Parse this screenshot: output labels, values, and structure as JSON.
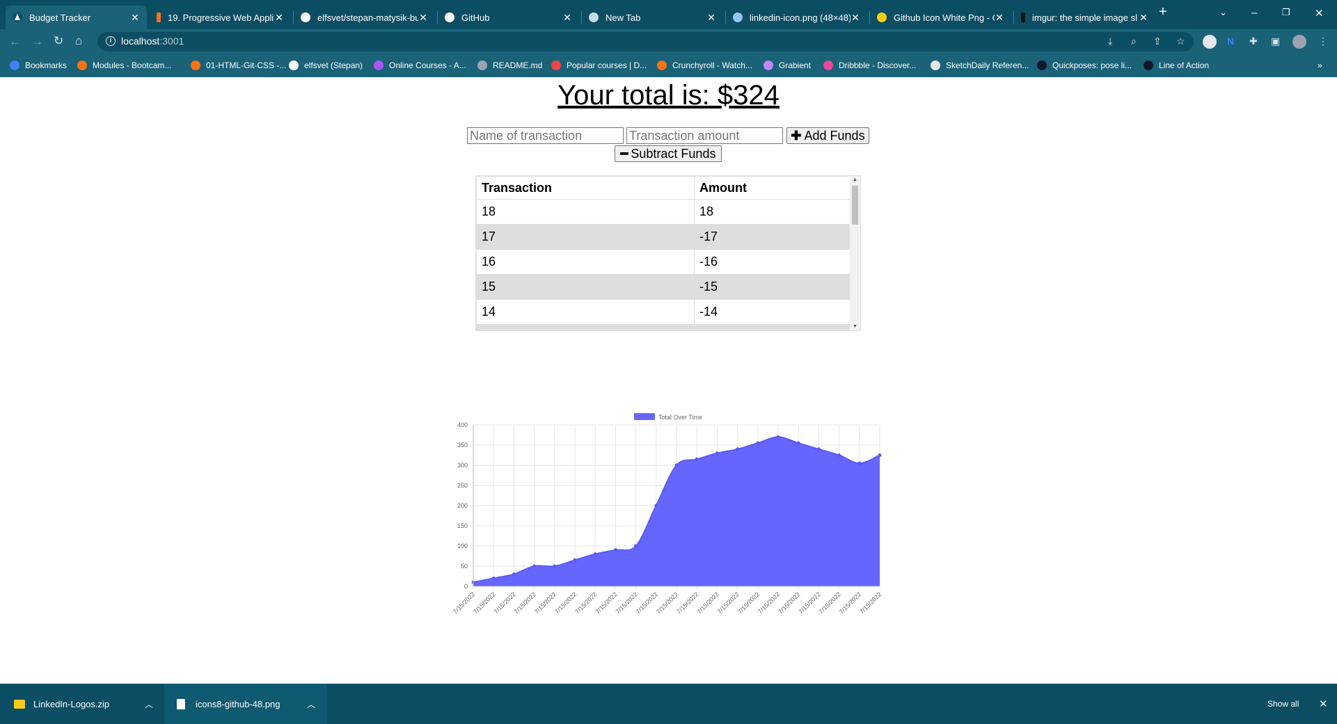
{
  "browser": {
    "tabs": [
      {
        "title": "Budget Tracker",
        "active": true,
        "icon": "budget-icon"
      },
      {
        "title": "19. Progressive Web Appli",
        "icon": "bootcamp-icon"
      },
      {
        "title": "elfsvet/stepan-matysik-bu",
        "icon": "github-icon"
      },
      {
        "title": "GitHub",
        "icon": "github-icon"
      },
      {
        "title": "New Tab",
        "icon": "chrome-icon"
      },
      {
        "title": "linkedin-icon.png (48×48)",
        "icon": "image-icon"
      },
      {
        "title": "Github Icon White Png - G",
        "icon": "pngegg-icon"
      },
      {
        "title": "imgur: the simple image sl",
        "icon": "imgur-icon"
      }
    ],
    "url_host": "localhost",
    "url_port": ":3001",
    "bookmarks": [
      {
        "label": "Bookmarks",
        "icon": "star-icon",
        "color": "#3b82f6"
      },
      {
        "label": "Modules - Bootcam...",
        "icon": "bootcamp-icon",
        "color": "#f97316"
      },
      {
        "label": "01-HTML-Git-CSS -...",
        "icon": "gitlab-icon",
        "color": "#f97316"
      },
      {
        "label": "elfsvet (Stepan)",
        "icon": "github-icon",
        "color": "#ffffff"
      },
      {
        "label": "Online Courses - A...",
        "icon": "udemy-icon",
        "color": "#a855f7"
      },
      {
        "label": "README.md",
        "icon": "globe-icon",
        "color": "#9ca3af"
      },
      {
        "label": "Popular courses | D...",
        "icon": "domestika-icon",
        "color": "#ef4444"
      },
      {
        "label": "Crunchyroll - Watch...",
        "icon": "crunchyroll-icon",
        "color": "#f97316"
      },
      {
        "label": "Grabient",
        "icon": "grabient-icon",
        "color": "#c084fc"
      },
      {
        "label": "Dribbble - Discover...",
        "icon": "dribbble-icon",
        "color": "#ec4899"
      },
      {
        "label": "SketchDaily Referen...",
        "icon": "sketchdaily-icon",
        "color": "#e5e7eb"
      },
      {
        "label": "Quickposes: pose li...",
        "icon": "quickposes-icon",
        "color": "#111827"
      },
      {
        "label": "Line of Action",
        "icon": "figure-icon",
        "color": "#111827"
      }
    ],
    "more_bookmarks": "»"
  },
  "app": {
    "total_label": "Your total is: $",
    "total_value": "324",
    "name_placeholder": "Name of transaction",
    "amount_placeholder": "Transaction amount",
    "add_label": "Add Funds",
    "subtract_label": "Subtract Funds",
    "table": {
      "headers": [
        "Transaction",
        "Amount"
      ],
      "rows": [
        [
          "18",
          "18"
        ],
        [
          "17",
          "-17"
        ],
        [
          "16",
          "-16"
        ],
        [
          "15",
          "-15"
        ],
        [
          "14",
          "-14"
        ]
      ]
    }
  },
  "chart_data": {
    "type": "area",
    "legend": [
      "Total Over Time"
    ],
    "legend_position": "top",
    "color": "#6666ff",
    "ylim": [
      0,
      400
    ],
    "yticks": [
      0,
      50,
      100,
      150,
      200,
      250,
      300,
      350,
      400
    ],
    "grid": true,
    "x": [
      "7/15/2022",
      "7/15/2022",
      "7/15/2022",
      "7/15/2022",
      "7/15/2022",
      "7/15/2022",
      "7/15/2022",
      "7/15/2022",
      "7/15/2022",
      "7/15/2022",
      "7/15/2022",
      "7/15/2022",
      "7/15/2022",
      "7/15/2022",
      "7/15/2022",
      "7/15/2022",
      "7/15/2022",
      "7/15/2022",
      "7/15/2022",
      "7/15/2022",
      "7/15/2022"
    ],
    "series": [
      {
        "name": "Total Over Time",
        "values": [
          10,
          20,
          30,
          50,
          50,
          65,
          80,
          90,
          100,
          200,
          300,
          315,
          330,
          340,
          355,
          370,
          355,
          340,
          325,
          305,
          325
        ]
      }
    ]
  },
  "downloads": {
    "items": [
      {
        "name": "LinkedIn-Logos.zip",
        "icon": "folder-zip-icon"
      },
      {
        "name": "icons8-github-48.png",
        "icon": "file-icon"
      }
    ],
    "show_all": "Show all"
  }
}
